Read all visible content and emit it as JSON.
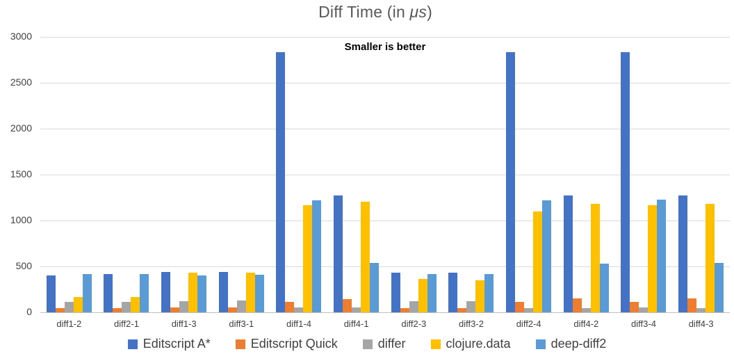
{
  "title": {
    "prefix": "Diff Time (in ",
    "math": "μs",
    "suffix": ")"
  },
  "chart_data": {
    "type": "bar",
    "title": "Diff Time (in μs)",
    "subtitle": "Smaller is better",
    "xlabel": "",
    "ylabel": "",
    "ylim": [
      0,
      3000
    ],
    "ytick_step": 500,
    "yticks": [
      "0",
      "500",
      "1000",
      "1500",
      "2000",
      "2500",
      "3000"
    ],
    "grid": true,
    "legend_position": "bottom",
    "categories": [
      "diff1-2",
      "diff2-1",
      "diff1-3",
      "diff3-1",
      "diff1-4",
      "diff4-1",
      "diff2-3",
      "diff3-2",
      "diff2-4",
      "diff4-2",
      "diff3-4",
      "diff4-3"
    ],
    "series": [
      {
        "name": "Editscript A*",
        "color": "#4472C4",
        "values": [
          400,
          415,
          440,
          440,
          2830,
          1275,
          435,
          430,
          2830,
          1275,
          2830,
          1275
        ]
      },
      {
        "name": "Editscript Quick",
        "color": "#ED7D31",
        "values": [
          45,
          45,
          50,
          55,
          110,
          145,
          45,
          45,
          115,
          150,
          110,
          150
        ]
      },
      {
        "name": "differ",
        "color": "#A5A5A5",
        "values": [
          115,
          115,
          120,
          125,
          50,
          50,
          120,
          120,
          45,
          45,
          50,
          45
        ]
      },
      {
        "name": "clojure.data",
        "color": "#FFC000",
        "values": [
          170,
          170,
          435,
          435,
          1170,
          1205,
          360,
          350,
          1095,
          1185,
          1165,
          1180
        ]
      },
      {
        "name": "deep-diff2",
        "color": "#5B9BD5",
        "values": [
          415,
          415,
          405,
          410,
          1220,
          535,
          420,
          415,
          1220,
          530,
          1225,
          535
        ]
      }
    ],
    "colors": {
      "title_text": "#595959",
      "axis_text": "#404040",
      "gridline": "#D9D9D9",
      "axis_line": "#BFBFBF",
      "background": "#FFFFFF"
    }
  }
}
